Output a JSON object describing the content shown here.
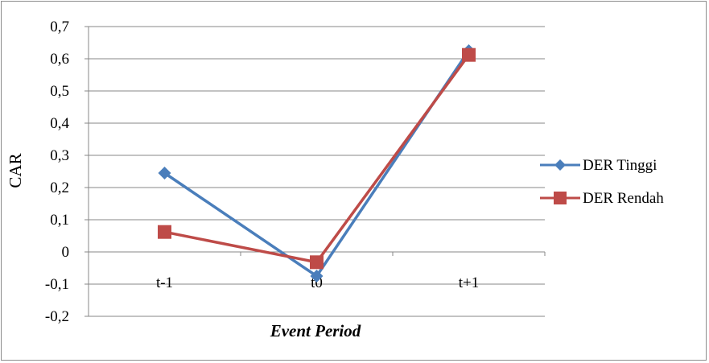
{
  "chart_data": {
    "type": "line",
    "categories": [
      "t-1",
      "t0",
      "t+1"
    ],
    "series": [
      {
        "name": "DER Tinggi",
        "values": [
          0.245,
          -0.075,
          0.625
        ],
        "color": "#4a7ebb",
        "marker": "diamond"
      },
      {
        "name": "DER Rendah",
        "values": [
          0.062,
          -0.032,
          0.612
        ],
        "color": "#be4b48",
        "marker": "square"
      }
    ],
    "xlabel": "Event Period",
    "ylabel": "CAR",
    "ylim": [
      -0.2,
      0.7
    ],
    "yticks": [
      0.7,
      0.6,
      0.5,
      0.4,
      0.3,
      0.2,
      0.1,
      0,
      -0.1,
      -0.2
    ],
    "ytick_labels": [
      "0,7",
      "0,6",
      "0,5",
      "0,4",
      "0,3",
      "0,2",
      "0,1",
      "0",
      "-0,1",
      "-0,2"
    ],
    "grid": true,
    "legend_position": "right"
  }
}
